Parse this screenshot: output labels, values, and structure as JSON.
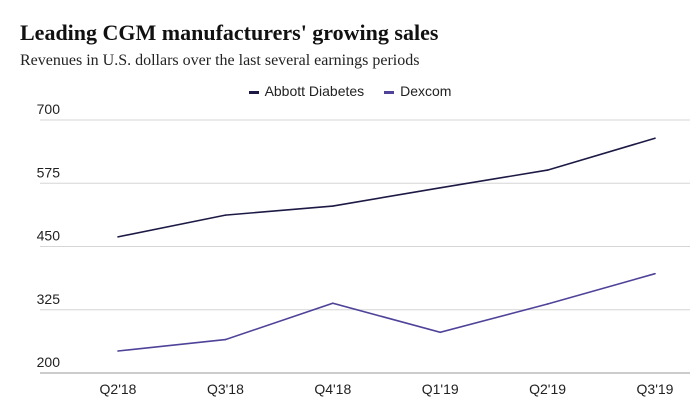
{
  "chart_data": {
    "type": "line",
    "title": "Leading CGM manufacturers' growing sales",
    "subtitle": "Revenues in U.S. dollars over the last several earnings periods",
    "categories": [
      "Q2'18",
      "Q3'18",
      "Q4'18",
      "Q1'19",
      "Q2'19",
      "Q3'19"
    ],
    "ylim": [
      200,
      700
    ],
    "yticks": [
      200,
      325,
      450,
      575,
      700
    ],
    "grid": true,
    "legend": "top-center",
    "series": [
      {
        "name": "Abbott Diabetes",
        "color": "#1c1a45",
        "values": [
          469,
          512,
          530,
          566,
          601,
          664
        ]
      },
      {
        "name": "Dexcom",
        "color": "#4e4399",
        "values": [
          243.5,
          266,
          337.9,
          280.5,
          336.4,
          396.3
        ]
      }
    ]
  }
}
